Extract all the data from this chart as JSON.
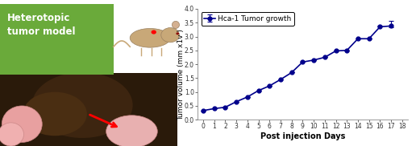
{
  "days": [
    0,
    1,
    2,
    3,
    4,
    5,
    6,
    7,
    8,
    9,
    10,
    11,
    12,
    13,
    14,
    15,
    16,
    17
  ],
  "tumor_volume": [
    0.33,
    0.4,
    0.45,
    0.65,
    0.82,
    1.05,
    1.22,
    1.45,
    1.7,
    2.08,
    2.15,
    2.25,
    2.48,
    2.5,
    2.92,
    2.92,
    3.35,
    3.38
  ],
  "error_last": 0.18,
  "error_second_last": 0.05,
  "line_color": "#00008B",
  "marker": "o",
  "marker_size": 3.5,
  "legend_label": "Hca-1 Tumor growth",
  "xlabel": "Post injection Days",
  "ylabel": "Tumor volume (mm x1v )",
  "ylim": [
    0.0,
    4.0
  ],
  "xlim": [
    -0.5,
    18.5
  ],
  "yticks": [
    0.0,
    0.5,
    1.0,
    1.5,
    2.0,
    2.5,
    3.0,
    3.5,
    4.0
  ],
  "xticks": [
    0,
    1,
    2,
    3,
    4,
    5,
    6,
    7,
    8,
    9,
    10,
    11,
    12,
    13,
    14,
    15,
    16,
    17,
    18
  ],
  "title_box_text": "Heterotopic\ntumor model",
  "title_box_color": "#6aaa3a",
  "line_width": 1.2,
  "xlabel_fontsize": 7,
  "ylabel_fontsize": 6.5,
  "tick_fontsize": 5.5,
  "legend_fontsize": 6.5
}
